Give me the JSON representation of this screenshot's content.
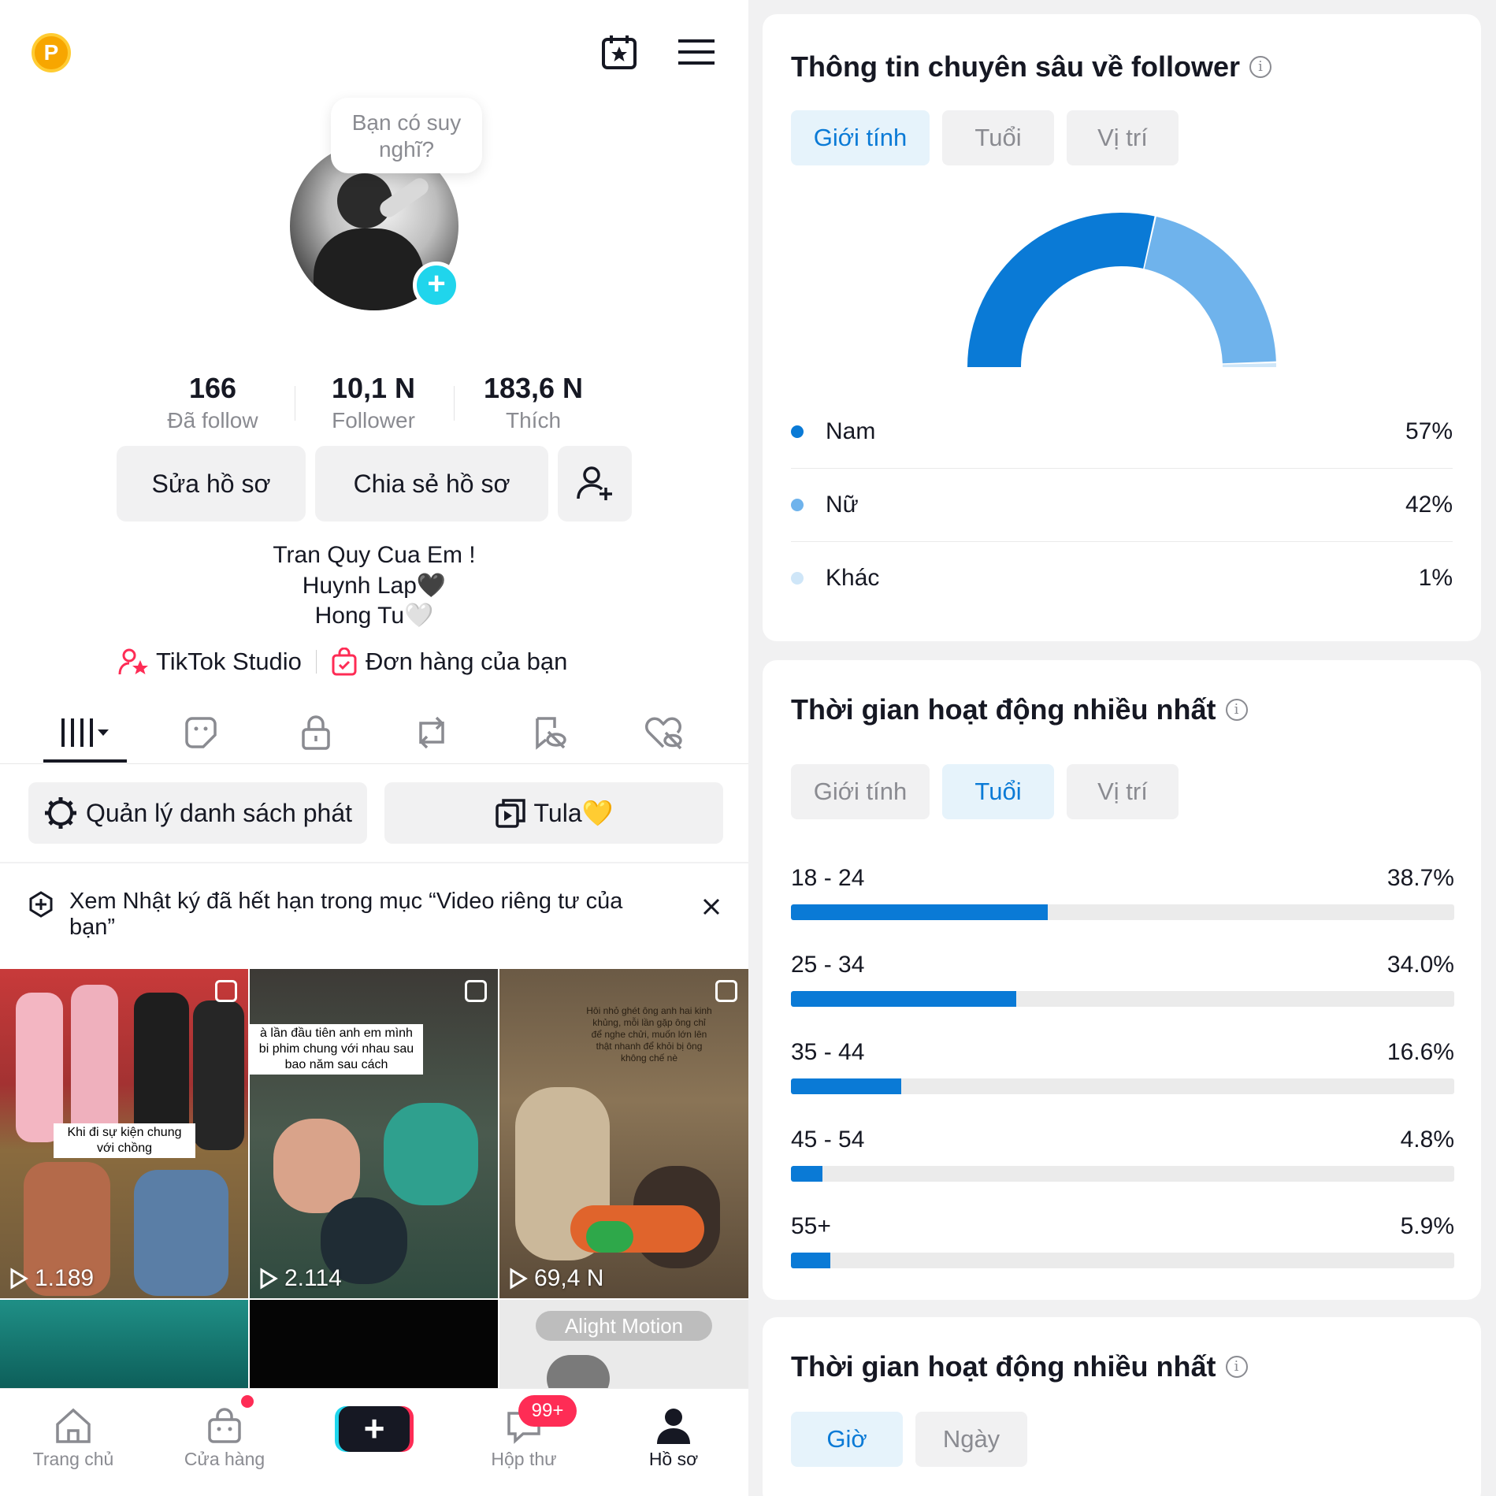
{
  "profile": {
    "bubble_text": "Bạn có suy nghĩ?",
    "stats": [
      {
        "value": "166",
        "label": "Đã follow"
      },
      {
        "value": "10,1 N",
        "label": "Follower"
      },
      {
        "value": "183,6 N",
        "label": "Thích"
      }
    ],
    "edit_label": "Sửa hồ sơ",
    "share_label": "Chia sẻ hồ sơ",
    "bio": [
      "Tran Quy Cua Em !",
      "Huynh Lap🖤",
      "Hong Tu🤍"
    ],
    "studio_label": "TikTok Studio",
    "orders_label": "Đơn hàng của bạn"
  },
  "playlist": {
    "manage_label": "Quản lý danh sách phát",
    "tula_label": "Tula💛"
  },
  "notice": {
    "text": "Xem Nhật ký đã hết hạn trong mục “Video riêng tư của bạn”"
  },
  "videos": [
    {
      "views": "1.189",
      "caption": "Khi đi sự kiện chung với chồng"
    },
    {
      "views": "2.114",
      "caption": "à lần đầu tiên anh em mình\nbi phim chung với nhau sau\nbao năm sau cách"
    },
    {
      "views": "69,4 N",
      "caption": "Hôi nhỏ ghét ông anh hai kinh khủng, mỗi lần gặp ông chỉ để nghe chửi, muốn lớn lên thật nhanh để khỏi bị ông không chế nè"
    },
    {
      "overlay": "Alight Motion"
    }
  ],
  "nav": [
    {
      "label": "Trang chủ",
      "icon": "home-icon"
    },
    {
      "label": "Cửa hàng",
      "icon": "shop-icon"
    },
    {
      "label": "",
      "icon": "plus-icon"
    },
    {
      "label": "Hộp thư",
      "icon": "inbox-icon",
      "badge": "99+"
    },
    {
      "label": "Hồ sơ",
      "icon": "profile-icon"
    }
  ],
  "insights": {
    "title": "Thông tin chuyên sâu về follower",
    "tabs": [
      "Giới tính",
      "Tuổi",
      "Vị trí"
    ],
    "gender": [
      {
        "label": "Nam",
        "value": "57%",
        "fraction": 0.57,
        "color": "#0a7ad6"
      },
      {
        "label": "Nữ",
        "value": "42%",
        "fraction": 0.42,
        "color": "#6fb3ec"
      },
      {
        "label": "Khác",
        "value": "1%",
        "fraction": 0.01,
        "color": "#cfe6f8"
      }
    ]
  },
  "activity": {
    "title": "Thời gian hoạt động nhiều nhất",
    "tabs": [
      "Giới tính",
      "Tuổi",
      "Vị trí"
    ],
    "ages": [
      {
        "label": "18 - 24",
        "value": "38.7%",
        "fraction": 0.387
      },
      {
        "label": "25 - 34",
        "value": "34.0%",
        "fraction": 0.34
      },
      {
        "label": "35 - 44",
        "value": "16.6%",
        "fraction": 0.166
      },
      {
        "label": "45 - 54",
        "value": "4.8%",
        "fraction": 0.048
      },
      {
        "label": "55+",
        "value": "5.9%",
        "fraction": 0.059
      }
    ]
  },
  "activity2": {
    "title": "Thời gian hoạt động nhiều nhất",
    "tabs": [
      "Giờ",
      "Ngày"
    ]
  },
  "colors": {
    "accent": "#0a7ad6",
    "brand_red": "#fe2c55",
    "brand_cyan": "#20d5ec"
  }
}
